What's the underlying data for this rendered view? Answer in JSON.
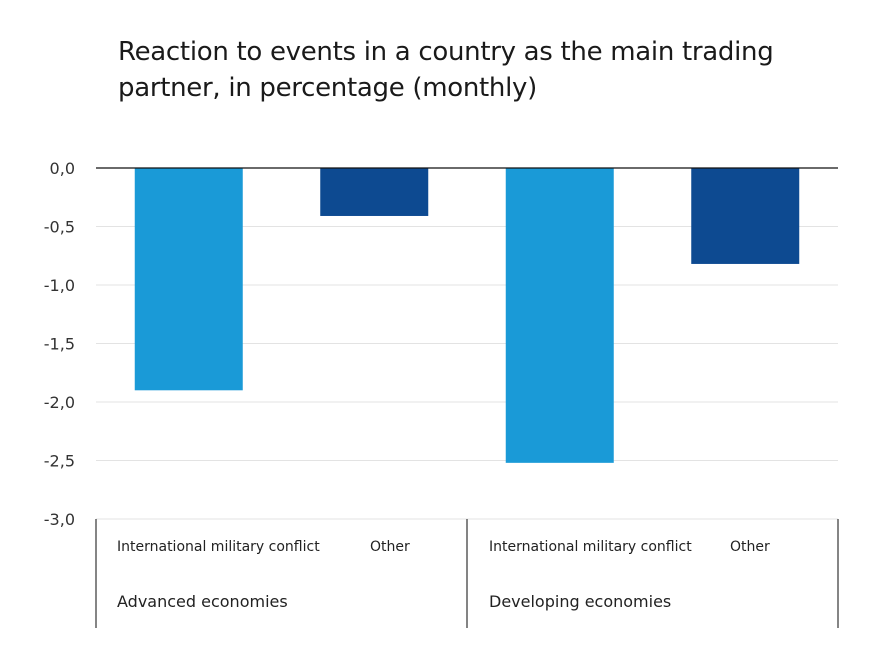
{
  "chart_data": {
    "type": "bar",
    "title": "Reaction to events in a country as the main trading partner, in percentage (monthly)",
    "xlabel": "",
    "ylabel": "",
    "ylim": [
      -3.0,
      0.0
    ],
    "yticks": [
      "0,0",
      "-0,5",
      "-1,0",
      "-1,5",
      "-2,0",
      "-2,5",
      "-3,0"
    ],
    "ytick_values": [
      0,
      -0.5,
      -1,
      -1.5,
      -2,
      -2.5,
      -3
    ],
    "grid": true,
    "groups": [
      "Advanced economies",
      "Developing economies"
    ],
    "categories": [
      "International military conflict",
      "Other",
      "International military conflict",
      "Other"
    ],
    "values": [
      -1.9,
      -0.41,
      -2.52,
      -0.82
    ],
    "colors": [
      "#1a9ad7",
      "#0d4a91",
      "#1a9ad7",
      "#0d4a91"
    ]
  }
}
